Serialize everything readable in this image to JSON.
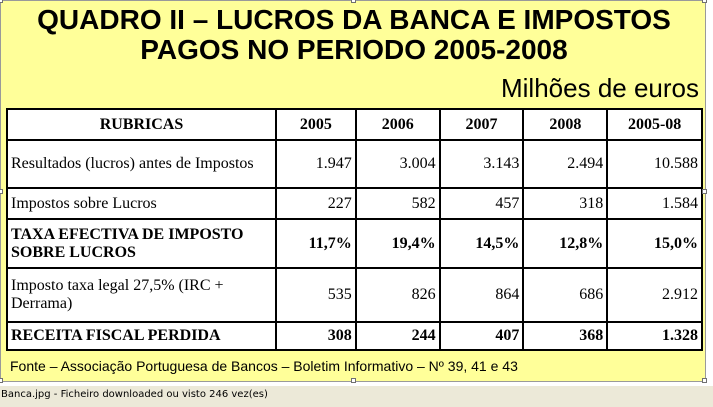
{
  "document": {
    "title_line1": "QUADRO II – LUCROS DA BANCA E IMPOSTOS",
    "title_line2": "PAGOS NO PERIODO 2005-2008",
    "units": "Milhões de euros",
    "background_color": "#ffff99",
    "table": {
      "headers": [
        "RUBRICAS",
        "2005",
        "2006",
        "2007",
        "2008",
        "2005-08"
      ],
      "rows": [
        {
          "label": "Resultados (lucros) antes de Impostos",
          "values": [
            "1.947",
            "3.004",
            "3.143",
            "2.494",
            "10.588"
          ],
          "bold": false
        },
        {
          "label": "Impostos sobre Lucros",
          "values": [
            "227",
            "582",
            "457",
            "318",
            "1.584"
          ],
          "bold": false
        },
        {
          "label": "TAXA EFECTIVA DE IMPOSTO SOBRE LUCROS",
          "values": [
            "11,7%",
            "19,4%",
            "14,5%",
            "12,8%",
            "15,0%"
          ],
          "bold": true
        },
        {
          "label": "Imposto taxa legal 27,5% (IRC + Derrama)",
          "values": [
            "535",
            "826",
            "864",
            "686",
            "2.912"
          ],
          "bold": false
        },
        {
          "label": "RECEITA FISCAL PERDIDA",
          "values": [
            "308",
            "244",
            "407",
            "368",
            "1.328"
          ],
          "bold": true
        }
      ]
    },
    "source": "Fonte – Associação Portuguesa de Bancos – Boletim Informativo – Nº 39, 41 e 43"
  },
  "status_bar": {
    "text": "Banca.jpg - Ficheiro downloaded ou visto 246 vez(es)"
  }
}
